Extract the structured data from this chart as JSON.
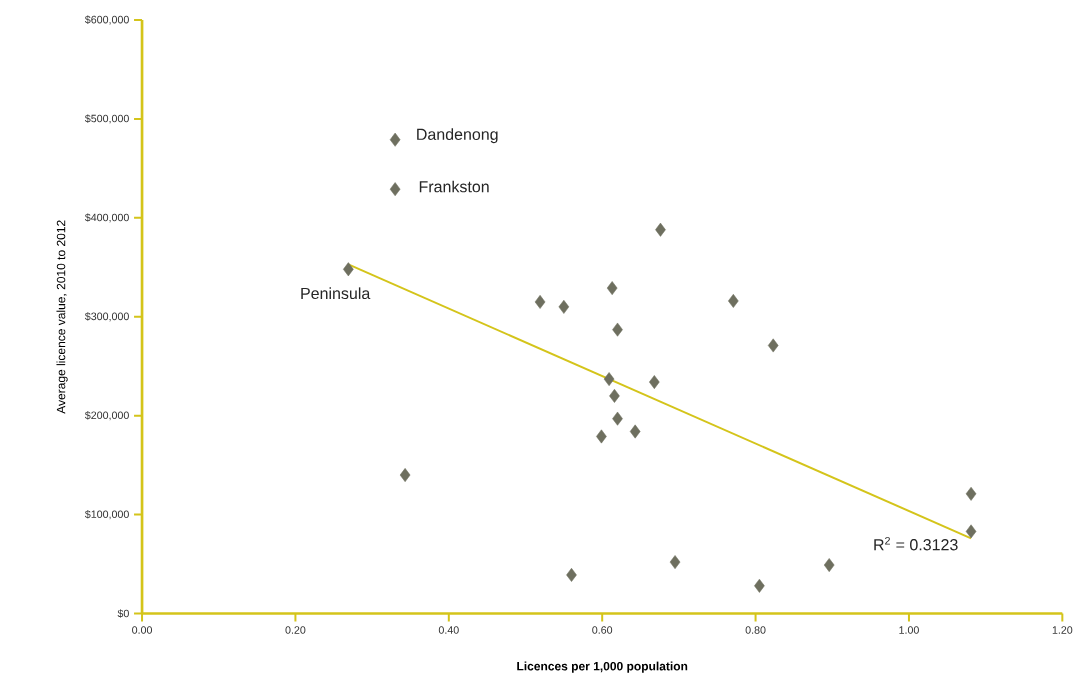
{
  "chart_data": {
    "type": "scatter",
    "xlabel": "Licences per 1,000 population",
    "ylabel": "Average licence value, 2010 to 2012",
    "xlim": [
      0,
      1.2
    ],
    "ylim": [
      0,
      600000
    ],
    "xticks": [
      {
        "value": 0,
        "label": "0.00"
      },
      {
        "value": 0.2,
        "label": "0.20"
      },
      {
        "value": 0.4,
        "label": "0.40"
      },
      {
        "value": 0.6,
        "label": "0.60"
      },
      {
        "value": 0.8,
        "label": "0.80"
      },
      {
        "value": 1.0,
        "label": "1.00"
      },
      {
        "value": 1.2,
        "label": "1.20"
      }
    ],
    "yticks": [
      {
        "value": 0,
        "label": "$0"
      },
      {
        "value": 100000,
        "label": "$100,000"
      },
      {
        "value": 200000,
        "label": "$200,000"
      },
      {
        "value": 300000,
        "label": "$300,000"
      },
      {
        "value": 400000,
        "label": "$400,000"
      },
      {
        "value": 500000,
        "label": "$500,000"
      },
      {
        "value": 600000,
        "label": "$600,000"
      }
    ],
    "series": [
      {
        "marker": "diamond",
        "color": "#6e6f5f",
        "x": [
          0.33,
          0.33,
          0.269,
          0.343,
          0.519,
          0.55,
          0.613,
          0.62,
          0.676,
          0.771,
          0.823,
          0.609,
          0.668,
          0.616,
          0.62,
          0.599,
          0.643,
          0.56,
          0.695,
          0.805,
          0.896,
          1.081,
          1.081
        ],
        "values": [
          479000,
          429000,
          348000,
          140000,
          315000,
          310000,
          329000,
          287000,
          388000,
          316000,
          271000,
          237000,
          234000,
          220000,
          197000,
          179000,
          184000,
          39000,
          52000,
          28000,
          49000,
          121000,
          83000
        ]
      },
      {
        "type": "line",
        "marker": "none",
        "color": "#d4c41a",
        "x": [
          0.269,
          1.081
        ],
        "values": [
          353000,
          76000
        ]
      }
    ],
    "annotations": [
      {
        "text": "Dandenong",
        "x": 0.33,
        "y": 479000
      },
      {
        "text": "Frankston",
        "x": 0.33,
        "y": 429000
      },
      {
        "text": "Peninsula",
        "x": 0.269,
        "y": 348000
      },
      {
        "text": "R$^{2}$ = 0.3123",
        "x": 1.081,
        "y": 76000
      }
    ]
  }
}
